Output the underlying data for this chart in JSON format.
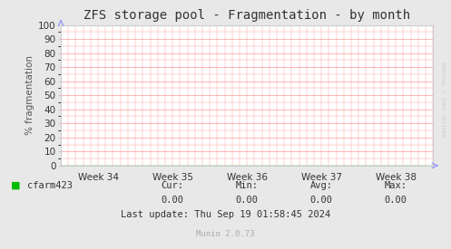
{
  "title": "ZFS storage pool - Fragmentation - by month",
  "ylabel": "% fragmentation",
  "bg_color": "#e8e8e8",
  "plot_bg_color": "#ffffff",
  "grid_color": "#ff9999",
  "border_color": "#cccccc",
  "ylim": [
    0,
    100
  ],
  "yticks": [
    0,
    10,
    20,
    30,
    40,
    50,
    60,
    70,
    80,
    90,
    100
  ],
  "x_week_labels": [
    "Week 34",
    "Week 35",
    "Week 36",
    "Week 37",
    "Week 38"
  ],
  "line_color": "#00aa00",
  "legend_label": "cfarm423",
  "legend_color": "#00bb00",
  "cur_val": "0.00",
  "min_val": "0.00",
  "avg_val": "0.00",
  "max_val": "0.00",
  "last_update": "Last update: Thu Sep 19 01:58:45 2024",
  "munin_version": "Munin 2.0.73",
  "rrdtool_label": "RRDTOOL / TOBI OETIKER",
  "title_fontsize": 10,
  "axis_fontsize": 7.5,
  "small_fontsize": 6.5,
  "arrow_color": "#9999ff"
}
